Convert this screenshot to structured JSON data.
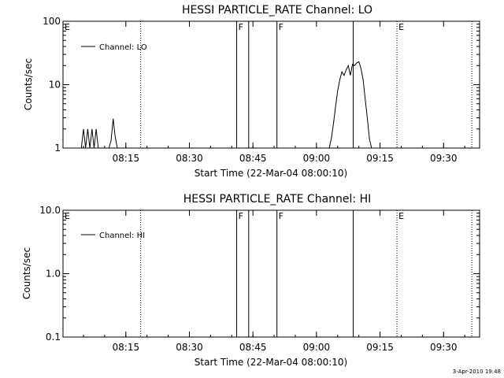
{
  "chart_data": [
    {
      "type": "line",
      "title": "HESSI PARTICLE_RATE Channel: LO",
      "xlabel": "Start Time (22-Mar-04 08:00:10)",
      "ylabel": "Counts/sec",
      "yscale": "log",
      "ylim": [
        1,
        100
      ],
      "xlim": [
        "08:00:10",
        "09:38:30"
      ],
      "x_ticks": [
        "08:15",
        "08:30",
        "08:45",
        "09:00",
        "09:15",
        "09:30"
      ],
      "y_ticks": [
        "1",
        "10",
        "100"
      ],
      "legend": {
        "placement": "top-left",
        "entries": [
          "Channel: LO"
        ]
      },
      "series": [
        {
          "name": "Channel: LO",
          "x": [
            "08:04:30",
            "08:05:00",
            "08:05:30",
            "08:06:00",
            "08:06:30",
            "08:07:00",
            "08:07:30",
            "08:08:00",
            "08:08:30",
            "08:09:00",
            "08:09:30",
            "08:10:00",
            "08:10:30",
            "08:11:00",
            "08:11:30",
            "08:12:00",
            "08:12:30",
            "08:13:00",
            "09:03:00",
            "09:03:30",
            "09:04:00",
            "09:04:30",
            "09:05:00",
            "09:05:30",
            "09:06:00",
            "09:06:30",
            "09:07:00",
            "09:07:30",
            "09:08:00",
            "09:08:30",
            "09:09:00",
            "09:09:30",
            "09:10:00",
            "09:10:30",
            "09:11:00",
            "09:11:30",
            "09:12:00",
            "09:12:30",
            "09:13:00",
            "09:13:30"
          ],
          "y": [
            1,
            2,
            1,
            2,
            1,
            2,
            1,
            2,
            1,
            1,
            1,
            1,
            1,
            1,
            1.3,
            2.9,
            1.5,
            1,
            1,
            1.4,
            2.4,
            4.5,
            8,
            12,
            16,
            14,
            17,
            20,
            14,
            21,
            20,
            22,
            23,
            18,
            12,
            6,
            3,
            1.4,
            1,
            1
          ]
        }
      ],
      "annotations": [
        {
          "label": "E",
          "x": "08:00:10",
          "style": "dotted"
        },
        {
          "label": "",
          "x": "08:18:30",
          "style": "dotted"
        },
        {
          "label": "F",
          "x": "08:41:10",
          "style": "solid"
        },
        {
          "label": "",
          "x": "08:44:00",
          "style": "solid"
        },
        {
          "label": "F",
          "x": "08:50:40",
          "style": "solid"
        },
        {
          "label": "",
          "x": "09:08:40",
          "style": "solid"
        },
        {
          "label": "E",
          "x": "09:19:00",
          "style": "dotted"
        },
        {
          "label": "",
          "x": "09:36:40",
          "style": "dotted"
        }
      ]
    },
    {
      "type": "line",
      "title": "HESSI PARTICLE_RATE Channel: HI",
      "xlabel": "Start Time (22-Mar-04 08:00:10)",
      "ylabel": "Counts/sec",
      "yscale": "log",
      "ylim": [
        0.1,
        10
      ],
      "xlim": [
        "08:00:10",
        "09:38:30"
      ],
      "x_ticks": [
        "08:15",
        "08:30",
        "08:45",
        "09:00",
        "09:15",
        "09:30"
      ],
      "y_ticks": [
        "0.1",
        "1.0",
        "10.0"
      ],
      "legend": {
        "placement": "top-left",
        "entries": [
          "Channel: HI"
        ]
      },
      "series": [
        {
          "name": "Channel: HI",
          "x": [],
          "y": []
        }
      ],
      "annotations": [
        {
          "label": "E",
          "x": "08:00:10",
          "style": "dotted"
        },
        {
          "label": "",
          "x": "08:18:30",
          "style": "dotted"
        },
        {
          "label": "F",
          "x": "08:41:10",
          "style": "solid"
        },
        {
          "label": "",
          "x": "08:44:00",
          "style": "solid"
        },
        {
          "label": "F",
          "x": "08:50:40",
          "style": "solid"
        },
        {
          "label": "",
          "x": "09:08:40",
          "style": "solid"
        },
        {
          "label": "E",
          "x": "09:19:00",
          "style": "dotted"
        },
        {
          "label": "",
          "x": "09:36:40",
          "style": "dotted"
        }
      ]
    }
  ],
  "footer": {
    "timestamp": "3-Apr-2010 19:48"
  }
}
